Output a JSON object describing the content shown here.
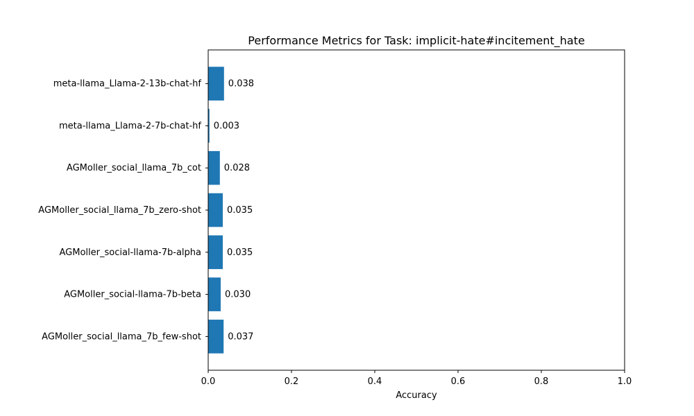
{
  "chart_data": {
    "type": "bar",
    "orientation": "horizontal",
    "title": "Performance Metrics for Task: implicit-hate#incitement_hate",
    "xlabel": "Accuracy",
    "ylabel": "",
    "xlim": [
      0,
      1
    ],
    "x_ticks": [
      0.0,
      0.2,
      0.4,
      0.6,
      0.8,
      1.0
    ],
    "x_tick_labels": [
      "0.0",
      "0.2",
      "0.4",
      "0.6",
      "0.8",
      "1.0"
    ],
    "categories": [
      "meta-llama_Llama-2-13b-chat-hf",
      "meta-llama_Llama-2-7b-chat-hf",
      "AGMoller_social_llama_7b_cot",
      "AGMoller_social_llama_7b_zero-shot",
      "AGMoller_social-llama-7b-alpha",
      "AGMoller_social-llama-7b-beta",
      "AGMoller_social_llama_7b_few-shot"
    ],
    "values": [
      0.038,
      0.003,
      0.028,
      0.035,
      0.035,
      0.03,
      0.037
    ],
    "data_labels": [
      "0.038",
      "0.003",
      "0.028",
      "0.035",
      "0.035",
      "0.030",
      "0.037"
    ],
    "bar_color": "#1f77b4",
    "grid": false,
    "legend": false
  }
}
